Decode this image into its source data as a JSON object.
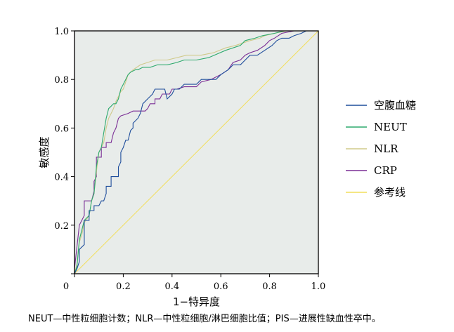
{
  "chart_data": {
    "type": "line",
    "xlabel": "1−特异度",
    "ylabel": "敏感度",
    "xlim": [
      0,
      1
    ],
    "ylim": [
      0,
      1
    ],
    "xticks": [
      "0",
      "0.2",
      "0.4",
      "0.6",
      "0.8",
      "1.0"
    ],
    "yticks": [
      "1.0",
      "0.8",
      "0.6",
      "0.4",
      "0.2",
      "0"
    ],
    "grid": false,
    "legend_position": "right",
    "colors": {
      "background": "#e8ecea",
      "frame": "#000000"
    },
    "series": [
      {
        "name": "空腹血糖",
        "color": "#1f4e9c",
        "points": [
          [
            0,
            0
          ],
          [
            0.01,
            0.02
          ],
          [
            0.02,
            0.05
          ],
          [
            0.02,
            0.1
          ],
          [
            0.04,
            0.12
          ],
          [
            0.04,
            0.22
          ],
          [
            0.06,
            0.22
          ],
          [
            0.06,
            0.26
          ],
          [
            0.08,
            0.26
          ],
          [
            0.08,
            0.28
          ],
          [
            0.1,
            0.28
          ],
          [
            0.11,
            0.3
          ],
          [
            0.12,
            0.3
          ],
          [
            0.13,
            0.33
          ],
          [
            0.13,
            0.36
          ],
          [
            0.15,
            0.36
          ],
          [
            0.15,
            0.4
          ],
          [
            0.18,
            0.4
          ],
          [
            0.18,
            0.44
          ],
          [
            0.19,
            0.46
          ],
          [
            0.19,
            0.5
          ],
          [
            0.2,
            0.52
          ],
          [
            0.21,
            0.55
          ],
          [
            0.22,
            0.55
          ],
          [
            0.23,
            0.59
          ],
          [
            0.24,
            0.6
          ],
          [
            0.24,
            0.62
          ],
          [
            0.26,
            0.64
          ],
          [
            0.27,
            0.66
          ],
          [
            0.28,
            0.7
          ],
          [
            0.3,
            0.72
          ],
          [
            0.32,
            0.74
          ],
          [
            0.33,
            0.76
          ],
          [
            0.35,
            0.76
          ],
          [
            0.37,
            0.76
          ],
          [
            0.38,
            0.72
          ],
          [
            0.4,
            0.74
          ],
          [
            0.41,
            0.76
          ],
          [
            0.43,
            0.76
          ],
          [
            0.45,
            0.78
          ],
          [
            0.48,
            0.78
          ],
          [
            0.5,
            0.78
          ],
          [
            0.52,
            0.8
          ],
          [
            0.56,
            0.8
          ],
          [
            0.58,
            0.8
          ],
          [
            0.6,
            0.82
          ],
          [
            0.63,
            0.84
          ],
          [
            0.65,
            0.86
          ],
          [
            0.68,
            0.86
          ],
          [
            0.7,
            0.88
          ],
          [
            0.72,
            0.9
          ],
          [
            0.75,
            0.9
          ],
          [
            0.78,
            0.92
          ],
          [
            0.81,
            0.94
          ],
          [
            0.83,
            0.96
          ],
          [
            0.85,
            0.97
          ],
          [
            0.88,
            0.97
          ],
          [
            0.9,
            0.98
          ],
          [
            0.93,
            0.99
          ],
          [
            0.95,
            1.0
          ],
          [
            1.0,
            1.0
          ]
        ]
      },
      {
        "name": "NEUT",
        "color": "#2eaa6e",
        "points": [
          [
            0,
            0
          ],
          [
            0.01,
            0.03
          ],
          [
            0.02,
            0.14
          ],
          [
            0.03,
            0.18
          ],
          [
            0.04,
            0.22
          ],
          [
            0.06,
            0.24
          ],
          [
            0.07,
            0.3
          ],
          [
            0.08,
            0.33
          ],
          [
            0.09,
            0.44
          ],
          [
            0.1,
            0.5
          ],
          [
            0.11,
            0.52
          ],
          [
            0.12,
            0.58
          ],
          [
            0.13,
            0.64
          ],
          [
            0.14,
            0.68
          ],
          [
            0.15,
            0.69
          ],
          [
            0.16,
            0.7
          ],
          [
            0.17,
            0.7
          ],
          [
            0.18,
            0.72
          ],
          [
            0.19,
            0.76
          ],
          [
            0.2,
            0.78
          ],
          [
            0.21,
            0.8
          ],
          [
            0.22,
            0.82
          ],
          [
            0.23,
            0.83
          ],
          [
            0.25,
            0.84
          ],
          [
            0.26,
            0.84
          ],
          [
            0.28,
            0.85
          ],
          [
            0.31,
            0.85
          ],
          [
            0.34,
            0.86
          ],
          [
            0.38,
            0.86
          ],
          [
            0.42,
            0.87
          ],
          [
            0.45,
            0.88
          ],
          [
            0.5,
            0.88
          ],
          [
            0.55,
            0.89
          ],
          [
            0.62,
            0.92
          ],
          [
            0.68,
            0.94
          ],
          [
            0.7,
            0.96
          ],
          [
            0.74,
            0.97
          ],
          [
            0.77,
            0.98
          ],
          [
            0.82,
            0.99
          ],
          [
            0.86,
            1.0
          ],
          [
            1.0,
            1.0
          ]
        ]
      },
      {
        "name": "NLR",
        "color": "#d0ca8a",
        "points": [
          [
            0,
            0
          ],
          [
            0.01,
            0.04
          ],
          [
            0.02,
            0.13
          ],
          [
            0.03,
            0.16
          ],
          [
            0.04,
            0.21
          ],
          [
            0.06,
            0.24
          ],
          [
            0.07,
            0.3
          ],
          [
            0.08,
            0.33
          ],
          [
            0.09,
            0.42
          ],
          [
            0.1,
            0.5
          ],
          [
            0.11,
            0.52
          ],
          [
            0.12,
            0.54
          ],
          [
            0.13,
            0.6
          ],
          [
            0.14,
            0.64
          ],
          [
            0.15,
            0.66
          ],
          [
            0.16,
            0.68
          ],
          [
            0.17,
            0.71
          ],
          [
            0.18,
            0.73
          ],
          [
            0.19,
            0.75
          ],
          [
            0.2,
            0.76
          ],
          [
            0.21,
            0.79
          ],
          [
            0.22,
            0.82
          ],
          [
            0.24,
            0.84
          ],
          [
            0.27,
            0.86
          ],
          [
            0.3,
            0.87
          ],
          [
            0.33,
            0.88
          ],
          [
            0.38,
            0.88
          ],
          [
            0.42,
            0.89
          ],
          [
            0.46,
            0.9
          ],
          [
            0.52,
            0.9
          ],
          [
            0.57,
            0.91
          ],
          [
            0.62,
            0.93
          ],
          [
            0.66,
            0.94
          ],
          [
            0.72,
            0.96
          ],
          [
            0.76,
            0.97
          ],
          [
            0.78,
            0.98
          ],
          [
            0.82,
            0.99
          ],
          [
            0.87,
            1.0
          ],
          [
            1.0,
            1.0
          ]
        ]
      },
      {
        "name": "CRP",
        "color": "#7b2f96",
        "points": [
          [
            0,
            0
          ],
          [
            0,
            0.02
          ],
          [
            0.02,
            0.2
          ],
          [
            0.04,
            0.24
          ],
          [
            0.04,
            0.3
          ],
          [
            0.07,
            0.3
          ],
          [
            0.08,
            0.34
          ],
          [
            0.08,
            0.38
          ],
          [
            0.09,
            0.4
          ],
          [
            0.09,
            0.48
          ],
          [
            0.11,
            0.48
          ],
          [
            0.11,
            0.52
          ],
          [
            0.13,
            0.52
          ],
          [
            0.13,
            0.54
          ],
          [
            0.15,
            0.54
          ],
          [
            0.16,
            0.58
          ],
          [
            0.17,
            0.6
          ],
          [
            0.18,
            0.64
          ],
          [
            0.19,
            0.65
          ],
          [
            0.22,
            0.66
          ],
          [
            0.24,
            0.67
          ],
          [
            0.27,
            0.67
          ],
          [
            0.29,
            0.67
          ],
          [
            0.3,
            0.68
          ],
          [
            0.31,
            0.7
          ],
          [
            0.33,
            0.7
          ],
          [
            0.33,
            0.72
          ],
          [
            0.35,
            0.72
          ],
          [
            0.36,
            0.74
          ],
          [
            0.39,
            0.74
          ],
          [
            0.4,
            0.76
          ],
          [
            0.42,
            0.76
          ],
          [
            0.45,
            0.77
          ],
          [
            0.5,
            0.77
          ],
          [
            0.52,
            0.79
          ],
          [
            0.56,
            0.8
          ],
          [
            0.6,
            0.82
          ],
          [
            0.63,
            0.84
          ],
          [
            0.65,
            0.87
          ],
          [
            0.68,
            0.88
          ],
          [
            0.7,
            0.9
          ],
          [
            0.72,
            0.91
          ],
          [
            0.75,
            0.92
          ],
          [
            0.78,
            0.94
          ],
          [
            0.8,
            0.96
          ],
          [
            0.82,
            0.97
          ],
          [
            0.85,
            0.99
          ],
          [
            0.9,
            1.0
          ],
          [
            1.0,
            1.0
          ]
        ]
      },
      {
        "name": "参考线",
        "color": "#f2de5a",
        "points": [
          [
            0,
            0
          ],
          [
            1,
            1
          ]
        ]
      }
    ]
  },
  "caption": "NEUT—中性粒细胞计数；NLR—中性粒细胞/淋巴细胞比值；PIS—进展性缺血性卒中。"
}
